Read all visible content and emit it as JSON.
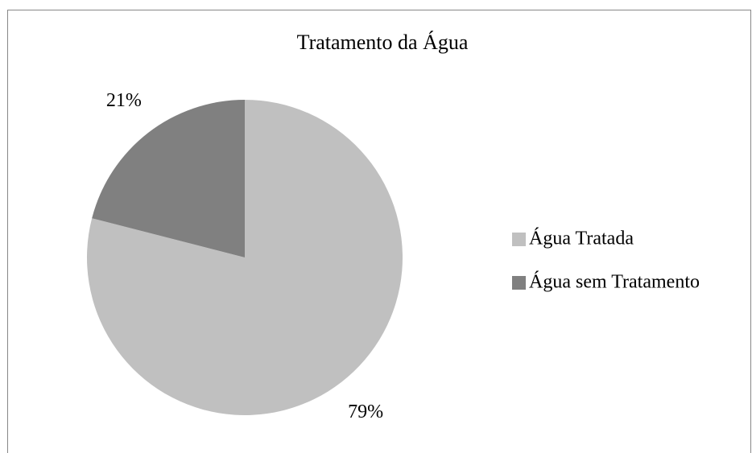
{
  "chart_data": {
    "type": "pie",
    "title": "Tratamento da Água",
    "categories": [
      "Água Tratada",
      "Água sem Tratamento"
    ],
    "values": [
      79,
      21
    ],
    "value_labels": [
      "79%",
      "21%"
    ],
    "colors": [
      "#c0c0c0",
      "#808080"
    ],
    "legend": "right"
  }
}
